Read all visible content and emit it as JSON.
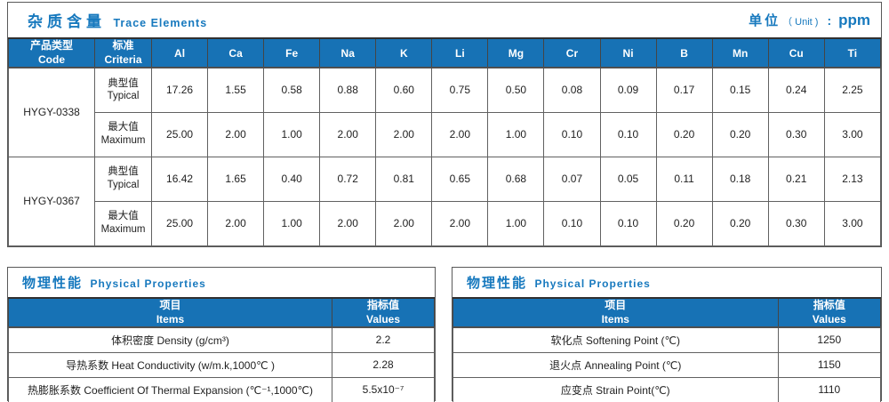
{
  "colors": {
    "accent_blue": "#1779be",
    "header_bg": "#1772b5",
    "border_gray": "#595959"
  },
  "unit": {
    "zh": "单位",
    "en": "（ Unit )",
    "colon": ":",
    "value": "ppm"
  },
  "trace": {
    "title_zh": "杂质含量",
    "title_en": "Trace Elements",
    "col_product_zh": "产品类型",
    "col_product_en": "Code",
    "col_criteria_zh": "标准",
    "col_criteria_en": "Criteria",
    "elements": [
      "Al",
      "Ca",
      "Fe",
      "Na",
      "K",
      "Li",
      "Mg",
      "Cr",
      "Ni",
      "B",
      "Mn",
      "Cu",
      "Ti"
    ],
    "products": [
      {
        "code": "HYGY-0338",
        "rows": [
          {
            "label_zh": "典型值",
            "label_en": "Typical",
            "values": [
              "17.26",
              "1.55",
              "0.58",
              "0.88",
              "0.60",
              "0.75",
              "0.50",
              "0.08",
              "0.09",
              "0.17",
              "0.15",
              "0.24",
              "2.25"
            ]
          },
          {
            "label_zh": "最大值",
            "label_en": "Maximum",
            "values": [
              "25.00",
              "2.00",
              "1.00",
              "2.00",
              "2.00",
              "2.00",
              "1.00",
              "0.10",
              "0.10",
              "0.20",
              "0.20",
              "0.30",
              "3.00"
            ]
          }
        ]
      },
      {
        "code": "HYGY-0367",
        "rows": [
          {
            "label_zh": "典型值",
            "label_en": "Typical",
            "values": [
              "16.42",
              "1.65",
              "0.40",
              "0.72",
              "0.81",
              "0.65",
              "0.68",
              "0.07",
              "0.05",
              "0.11",
              "0.18",
              "0.21",
              "2.13"
            ]
          },
          {
            "label_zh": "最大值",
            "label_en": "Maximum",
            "values": [
              "25.00",
              "2.00",
              "1.00",
              "2.00",
              "2.00",
              "2.00",
              "1.00",
              "0.10",
              "0.10",
              "0.20",
              "0.20",
              "0.30",
              "3.00"
            ]
          }
        ]
      }
    ]
  },
  "physical_left": {
    "title_zh": "物理性能",
    "title_en": "Physical Properties",
    "col_item_zh": "项目",
    "col_item_en": "Items",
    "col_value_zh": "指标值",
    "col_value_en": "Values",
    "rows": [
      {
        "item": "体积密度 Density (g/cm³)",
        "value": "2.2"
      },
      {
        "item": "导热系数 Heat Conductivity (w/m.k,1000℃ )",
        "value": "2.28"
      },
      {
        "item": "热膨胀系数 Coefficient Of Thermal Expansion (℃⁻¹,1000℃)",
        "value": "5.5x10⁻⁷"
      }
    ]
  },
  "physical_right": {
    "title_zh": "物理性能",
    "title_en": "Physical Properties",
    "col_item_zh": "项目",
    "col_item_en": "Items",
    "col_value_zh": "指标值",
    "col_value_en": "Values",
    "rows": [
      {
        "item": "软化点 Softening Point (℃)",
        "value": "1250"
      },
      {
        "item": "退火点 Annealing Point (℃)",
        "value": "1150"
      },
      {
        "item": "应变点 Strain Point(℃)",
        "value": "1110"
      }
    ]
  }
}
